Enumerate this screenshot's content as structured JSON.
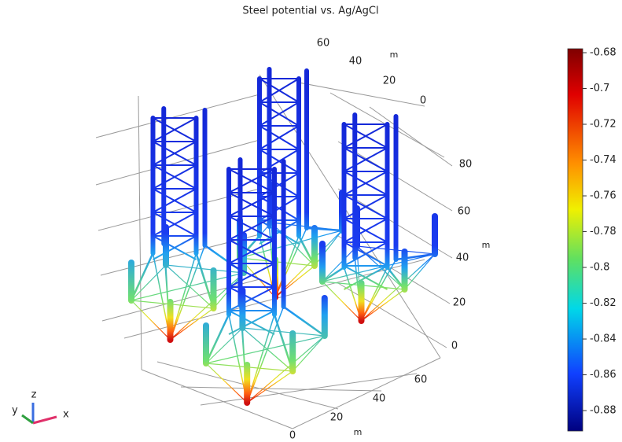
{
  "title": "Steel potential vs. Ag/AgCl",
  "axes": {
    "x": {
      "label": "m",
      "ticks": [
        0,
        20,
        40,
        60
      ]
    },
    "y": {
      "label": "m",
      "ticks": [
        60,
        40,
        20,
        0
      ]
    },
    "z": {
      "label": "m",
      "ticks": [
        80,
        60,
        40,
        20,
        0
      ]
    }
  },
  "colorbar": {
    "lim": [
      -0.8914,
      -0.6778
    ],
    "ticks": [
      -0.68,
      -0.7,
      -0.72,
      -0.74,
      -0.76,
      -0.78,
      -0.8,
      -0.82,
      -0.84,
      -0.86,
      -0.88
    ]
  },
  "triad": {
    "x": "x",
    "y": "y",
    "z": "z"
  }
}
